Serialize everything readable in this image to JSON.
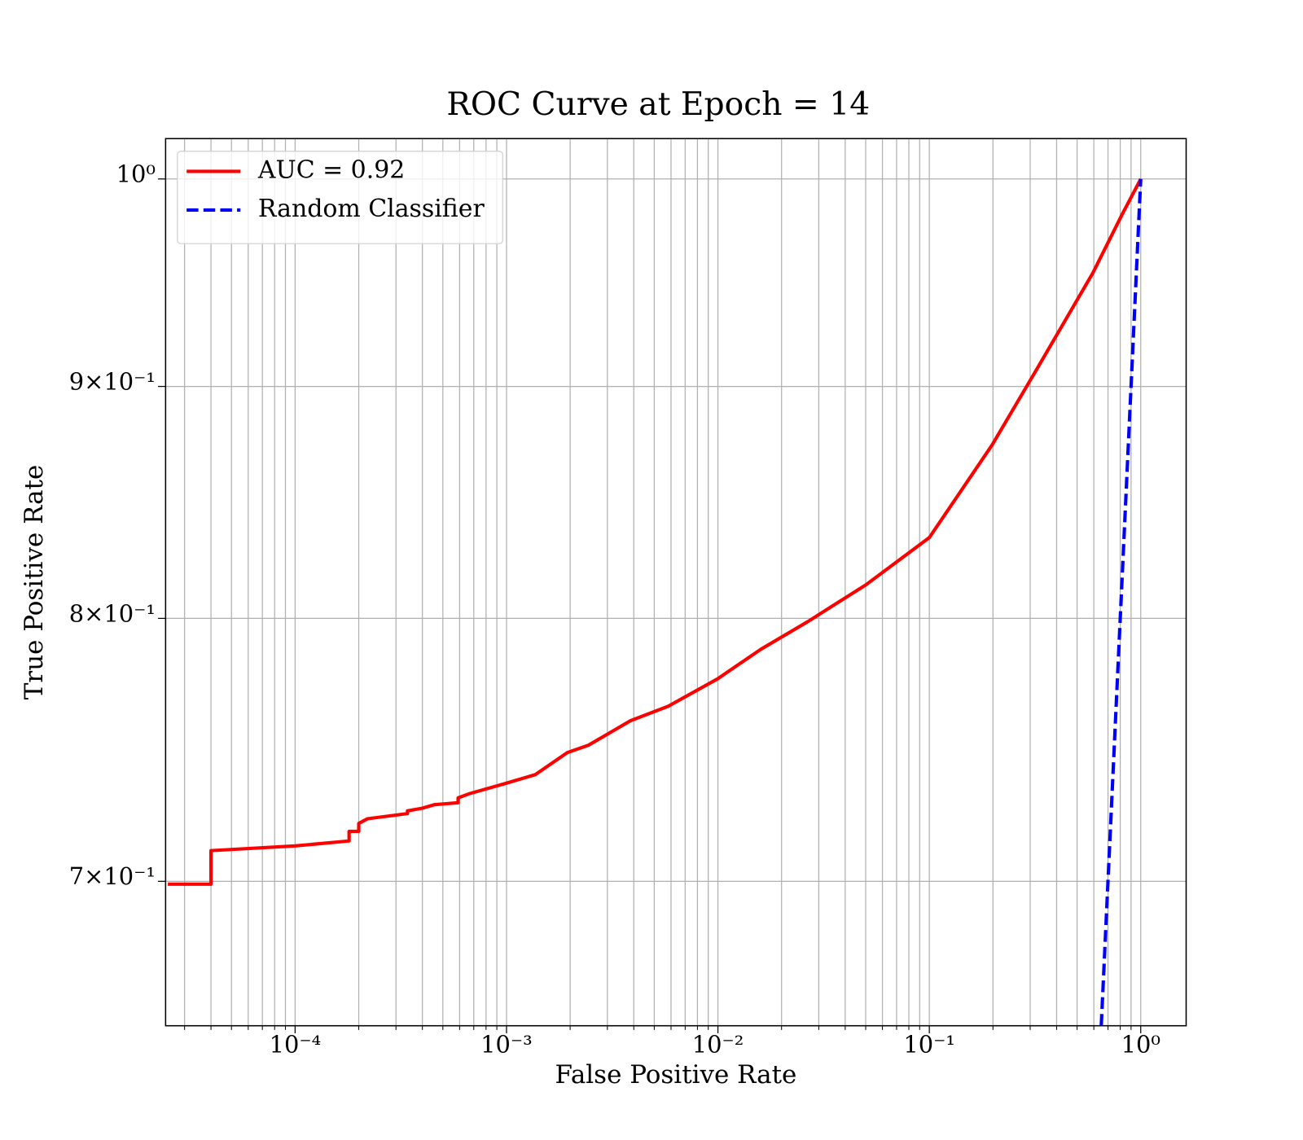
{
  "chart_data": {
    "type": "line",
    "title": "ROC Curve at Epoch = 14",
    "xlabel": "False Positive Rate",
    "ylabel": "True Positive Rate",
    "xscale": "log",
    "yscale": "log",
    "grid": true,
    "legend": "upper left",
    "xlim": [
      2.44e-05,
      1.64
    ],
    "ylim": [
      0.6505,
      1.0207
    ],
    "xticks": [
      {
        "value": 0.0001,
        "label": "10⁻⁴"
      },
      {
        "value": 0.001,
        "label": "10⁻³"
      },
      {
        "value": 0.01,
        "label": "10⁻²"
      },
      {
        "value": 0.1,
        "label": "10⁻¹"
      },
      {
        "value": 1,
        "label": "10⁰"
      }
    ],
    "xminorticks": [
      3e-05,
      4e-05,
      5e-05,
      6e-05,
      7e-05,
      8e-05,
      9e-05,
      0.0002,
      0.0003,
      0.0004,
      0.0005,
      0.0006,
      0.0007,
      0.0008,
      0.0009,
      0.002,
      0.003,
      0.004,
      0.005,
      0.006,
      0.007,
      0.008,
      0.009,
      0.02,
      0.03,
      0.04,
      0.05,
      0.06,
      0.07,
      0.08,
      0.09,
      0.2,
      0.3,
      0.4,
      0.5,
      0.6,
      0.7,
      0.8,
      0.9
    ],
    "yticks": [
      {
        "value": 1,
        "label": "10⁰"
      },
      {
        "value": 0.9,
        "label": "9×10⁻¹"
      },
      {
        "value": 0.8,
        "label": "8×10⁻¹"
      },
      {
        "value": 0.7,
        "label": "7×10⁻¹"
      }
    ],
    "series": [
      {
        "name": "AUC = 0.92",
        "color": "#ff0000",
        "dash": false,
        "x": [
          2.5e-05,
          4e-05,
          4e-05,
          0.0001,
          0.00018,
          0.00018,
          0.0002,
          0.0002,
          0.00022,
          0.00034,
          0.00034,
          0.0004,
          0.000457,
          0.00059,
          0.00059,
          0.00067,
          0.001,
          0.00137,
          0.00194,
          0.00244,
          0.00386,
          0.00582,
          0.01,
          0.016,
          0.0264,
          0.05,
          0.1,
          0.198,
          0.313,
          0.593,
          0.818,
          1
        ],
        "values": [
          0.699,
          0.699,
          0.711,
          0.7127,
          0.7145,
          0.718,
          0.718,
          0.7209,
          0.7226,
          0.7245,
          0.7255,
          0.7265,
          0.7278,
          0.7285,
          0.7303,
          0.7319,
          0.7358,
          0.739,
          0.7473,
          0.7501,
          0.7595,
          0.7651,
          0.7759,
          0.7876,
          0.7985,
          0.8137,
          0.8335,
          0.8736,
          0.9058,
          0.9533,
          0.9823,
          1
        ]
      },
      {
        "name": "Random Classifier",
        "color": "#0000ff",
        "dash": true,
        "x": [
          0.6505,
          1
        ],
        "values": [
          0.6505,
          1
        ]
      }
    ]
  }
}
